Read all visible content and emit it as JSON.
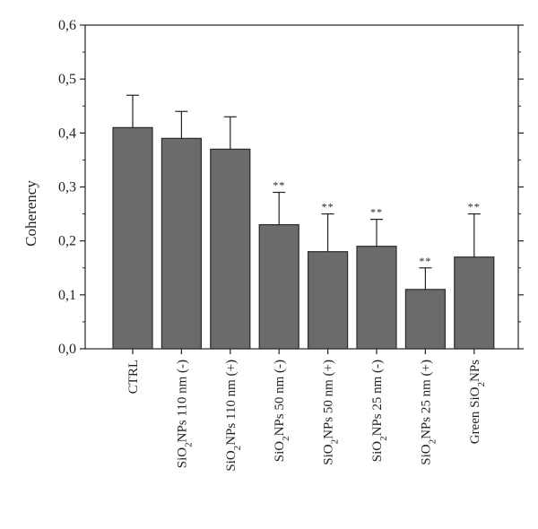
{
  "chart_data": {
    "type": "bar",
    "ylabel": "Coherency",
    "xlabel": "",
    "ylim": [
      0,
      0.6
    ],
    "yticks": [
      "0,0",
      "0,1",
      "0,2",
      "0,3",
      "0,4",
      "0,5",
      "0,6"
    ],
    "ytick_values": [
      0,
      0.1,
      0.2,
      0.3,
      0.4,
      0.5,
      0.6
    ],
    "categories": [
      "CTRL",
      "SiO2NPs 110 nm (-)",
      "SiO2NPs 110 nm (+)",
      "SiO2NPs 50 nm (-)",
      "SiO2NPs 50 nm (+)",
      "SiO2NPs 25 nm (-)",
      "SiO2NPs 25 nm (+)",
      "Green SiO2NPs"
    ],
    "values": [
      0.41,
      0.39,
      0.37,
      0.23,
      0.18,
      0.19,
      0.11,
      0.17
    ],
    "errors": [
      0.06,
      0.05,
      0.06,
      0.06,
      0.07,
      0.05,
      0.04,
      0.08
    ],
    "significance": [
      "",
      "",
      "",
      "**",
      "**",
      "**",
      "**",
      "**"
    ],
    "bar_color": "#6b6b6b",
    "grid": false
  }
}
